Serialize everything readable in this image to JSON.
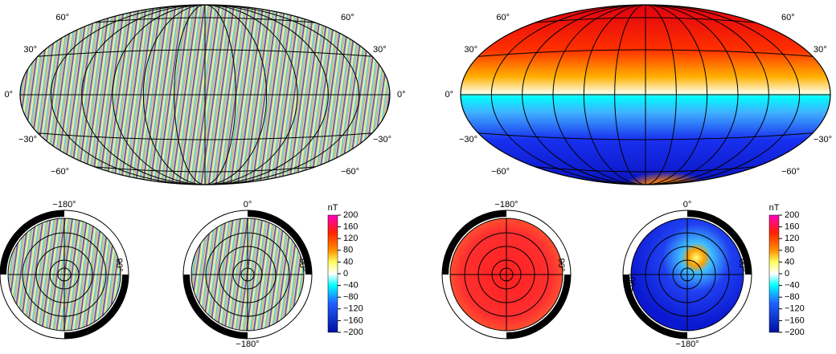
{
  "panels": [
    {
      "map": {
        "lat_labels_left": [
          "60°",
          "30°",
          "0°",
          "−30°",
          "−60°"
        ],
        "lat_labels_right": [
          "60°",
          "30°",
          "0°",
          "−30°",
          "−60°"
        ]
      },
      "polar": [
        {
          "top": "−180°",
          "right": "90°"
        },
        {
          "top": "0°",
          "right": "90°",
          "bottom": "−180°"
        }
      ],
      "colorbar": {
        "unit": "nT",
        "ticks": [
          200,
          160,
          120,
          80,
          40,
          0,
          {
            "value": -40,
            "label": "−40"
          },
          {
            "value": -80,
            "label": "−80"
          },
          {
            "value": -120,
            "label": "−120"
          },
          {
            "value": -160,
            "label": "−160"
          },
          {
            "value": -200,
            "label": "−200"
          }
        ]
      }
    },
    {
      "map": {
        "lat_labels_left": [
          "60°",
          "30°",
          "0°",
          "−30°",
          "−60°"
        ],
        "lat_labels_right": [
          "60°",
          "30°",
          "0°",
          "−30°",
          "−60°"
        ]
      },
      "polar": [
        {
          "top": "−180°",
          "right": "90°"
        },
        {
          "top": "0°",
          "right": "90°",
          "left": "−90°",
          "bottom": "−180°"
        }
      ],
      "colorbar": {
        "unit": "nT",
        "ticks": [
          200,
          160,
          120,
          80,
          40,
          0,
          {
            "value": -40,
            "label": "−40"
          },
          {
            "value": -80,
            "label": "−80"
          },
          {
            "value": -120,
            "label": "−120"
          },
          {
            "value": -160,
            "label": "−160"
          },
          {
            "value": -200,
            "label": "−200"
          }
        ]
      }
    }
  ]
}
